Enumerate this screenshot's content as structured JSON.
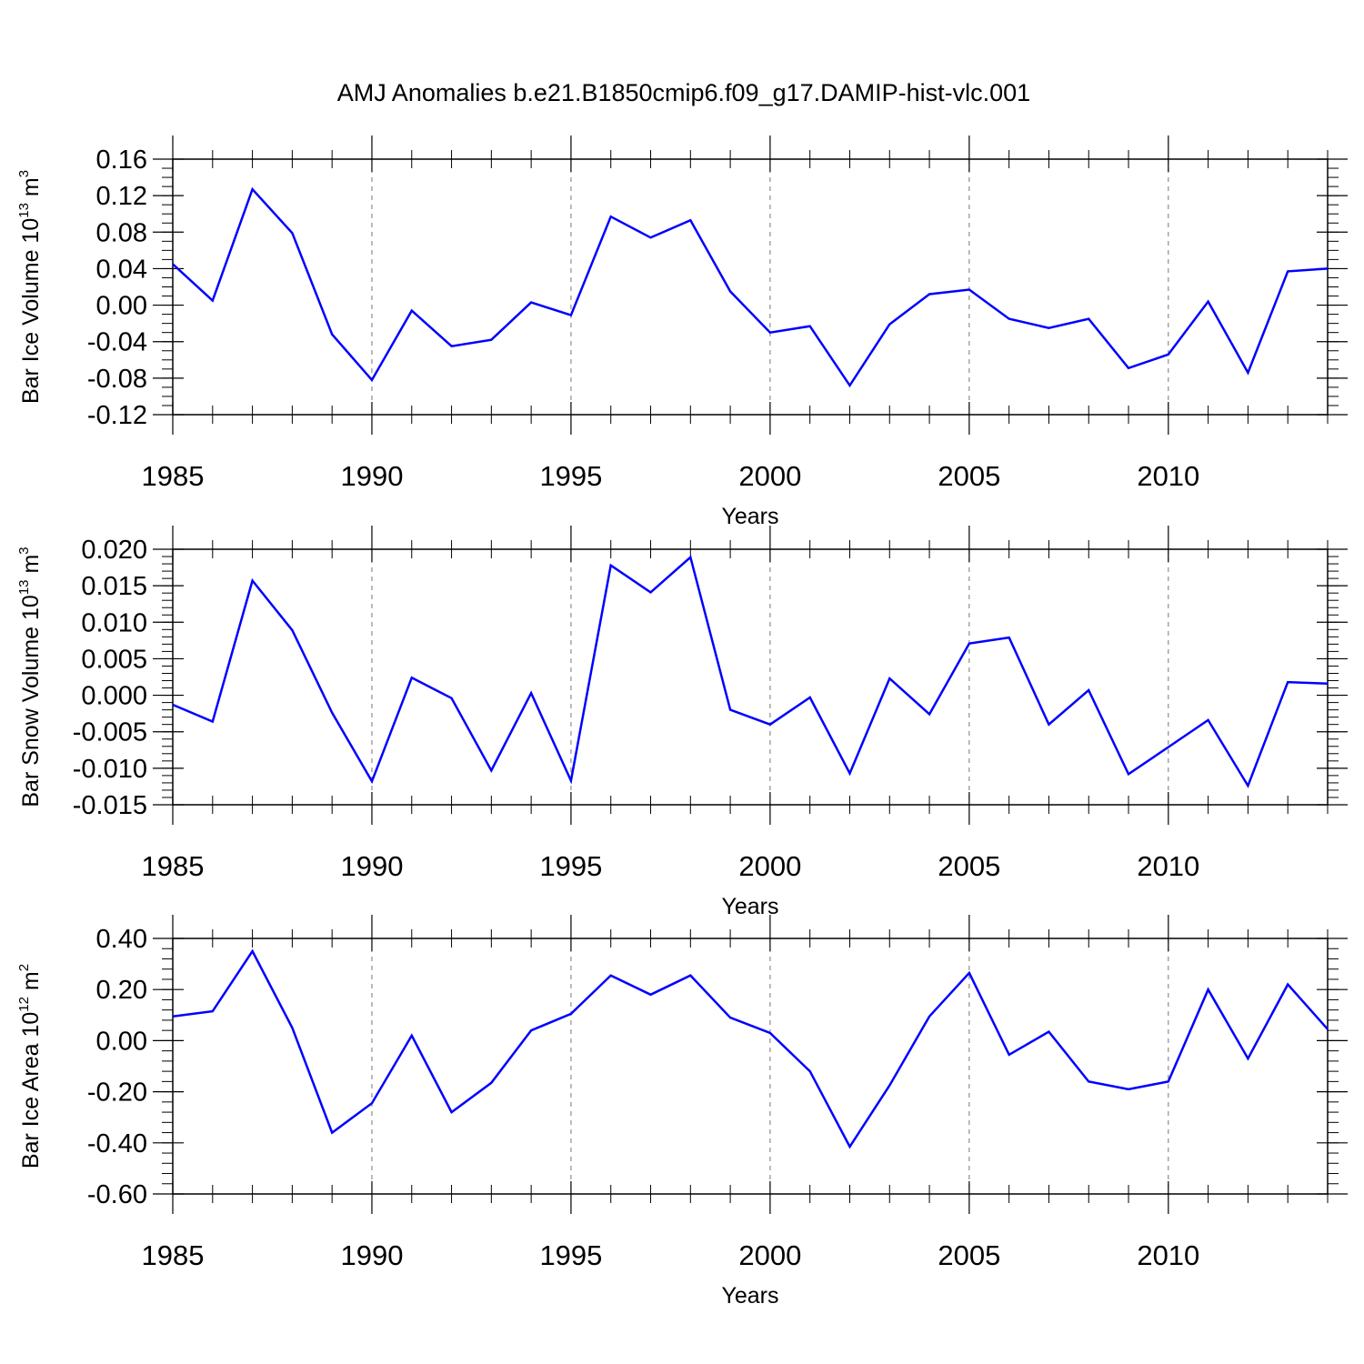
{
  "figure": {
    "title": "AMJ Anomalies b.e21.B1850cmip6.f09_g17.DAMIP-hist-vlc.001"
  },
  "chart_data": [
    {
      "type": "line",
      "title": "",
      "xlabel": "Years",
      "ylabel": {
        "main": "Bar Ice Volume 10",
        "exp": "13",
        "unit": " m",
        "unit_exp": "3"
      },
      "xlim": [
        1985,
        2014
      ],
      "ylim": [
        -0.12,
        0.16
      ],
      "xticks": [
        1985,
        1990,
        1995,
        2000,
        2005,
        2010
      ],
      "xtick_labels": [
        "1985",
        "1990",
        "1995",
        "2000",
        "2005",
        "2010"
      ],
      "yticks": [
        -0.12,
        -0.08,
        -0.04,
        0.0,
        0.04,
        0.08,
        0.12,
        0.16
      ],
      "ytick_labels": [
        "-0.12",
        "-0.08",
        "-0.04",
        "0.00",
        "0.04",
        "0.08",
        "0.12",
        "0.16"
      ],
      "color": "#0000ff",
      "grid": "vertical dashed at labeled years",
      "series": [
        {
          "name": "Bar Ice Volume",
          "x": [
            1985,
            1986,
            1987,
            1988,
            1989,
            1990,
            1991,
            1992,
            1993,
            1994,
            1995,
            1996,
            1997,
            1998,
            1999,
            2000,
            2001,
            2002,
            2003,
            2004,
            2005,
            2006,
            2007,
            2008,
            2009,
            2010,
            2011,
            2012,
            2013,
            2014
          ],
          "values": [
            0.045,
            0.005,
            0.127,
            0.079,
            -0.032,
            -0.082,
            -0.006,
            -0.045,
            -0.038,
            0.003,
            -0.011,
            0.097,
            0.074,
            0.093,
            0.015,
            -0.03,
            -0.023,
            -0.088,
            -0.021,
            0.012,
            0.017,
            -0.015,
            -0.025,
            -0.015,
            -0.069,
            -0.054,
            0.004,
            -0.074,
            0.037,
            0.04
          ]
        }
      ]
    },
    {
      "type": "line",
      "title": "",
      "xlabel": "Years",
      "ylabel": {
        "main": "Bar Snow Volume 10",
        "exp": "13",
        "unit": " m",
        "unit_exp": "3"
      },
      "xlim": [
        1985,
        2014
      ],
      "ylim": [
        -0.015,
        0.02
      ],
      "xticks": [
        1985,
        1990,
        1995,
        2000,
        2005,
        2010
      ],
      "xtick_labels": [
        "1985",
        "1990",
        "1995",
        "2000",
        "2005",
        "2010"
      ],
      "yticks": [
        -0.015,
        -0.01,
        -0.005,
        0.0,
        0.005,
        0.01,
        0.015,
        0.02
      ],
      "ytick_labels": [
        "-0.015",
        "-0.010",
        "-0.005",
        "0.000",
        "0.005",
        "0.010",
        "0.015",
        "0.020"
      ],
      "color": "#0000ff",
      "grid": "vertical dashed at labeled years",
      "series": [
        {
          "name": "Bar Snow Volume",
          "x": [
            1985,
            1986,
            1987,
            1988,
            1989,
            1990,
            1991,
            1992,
            1993,
            1994,
            1995,
            1996,
            1997,
            1998,
            1999,
            2000,
            2001,
            2002,
            2003,
            2004,
            2005,
            2006,
            2007,
            2008,
            2009,
            2010,
            2011,
            2012,
            2013,
            2014
          ],
          "values": [
            -0.0013,
            -0.0036,
            0.0157,
            0.0089,
            -0.0024,
            -0.0118,
            0.0024,
            -0.0004,
            -0.0103,
            0.0003,
            -0.0117,
            0.0178,
            0.0141,
            0.0189,
            -0.002,
            -0.004,
            -0.0003,
            -0.0107,
            0.0023,
            -0.0026,
            0.0071,
            0.0079,
            -0.004,
            0.0007,
            -0.0108,
            -0.0071,
            -0.0034,
            -0.0124,
            0.0018,
            0.0016
          ]
        }
      ]
    },
    {
      "type": "line",
      "title": "",
      "xlabel": "Years",
      "ylabel": {
        "main": "Bar Ice Area 10",
        "exp": "12",
        "unit": " m",
        "unit_exp": "2"
      },
      "xlim": [
        1985,
        2014
      ],
      "ylim": [
        -0.6,
        0.4
      ],
      "xticks": [
        1985,
        1990,
        1995,
        2000,
        2005,
        2010
      ],
      "xtick_labels": [
        "1985",
        "1990",
        "1995",
        "2000",
        "2005",
        "2010"
      ],
      "yticks": [
        -0.6,
        -0.4,
        -0.2,
        0.0,
        0.2,
        0.4
      ],
      "ytick_labels": [
        "-0.60",
        "-0.40",
        "-0.20",
        "0.00",
        "0.20",
        "0.40"
      ],
      "color": "#0000ff",
      "grid": "vertical dashed at labeled years",
      "series": [
        {
          "name": "Bar Ice Area",
          "x": [
            1985,
            1986,
            1987,
            1988,
            1989,
            1990,
            1991,
            1992,
            1993,
            1994,
            1995,
            1996,
            1997,
            1998,
            1999,
            2000,
            2001,
            2002,
            2003,
            2004,
            2005,
            2006,
            2007,
            2008,
            2009,
            2010,
            2011,
            2012,
            2013,
            2014
          ],
          "values": [
            0.095,
            0.115,
            0.35,
            0.05,
            -0.36,
            -0.245,
            0.02,
            -0.28,
            -0.165,
            0.04,
            0.105,
            0.255,
            0.18,
            0.255,
            0.09,
            0.03,
            -0.12,
            -0.415,
            -0.175,
            0.095,
            0.265,
            -0.055,
            0.035,
            -0.16,
            -0.19,
            -0.16,
            0.2,
            -0.07,
            0.22,
            0.045
          ]
        }
      ]
    }
  ]
}
